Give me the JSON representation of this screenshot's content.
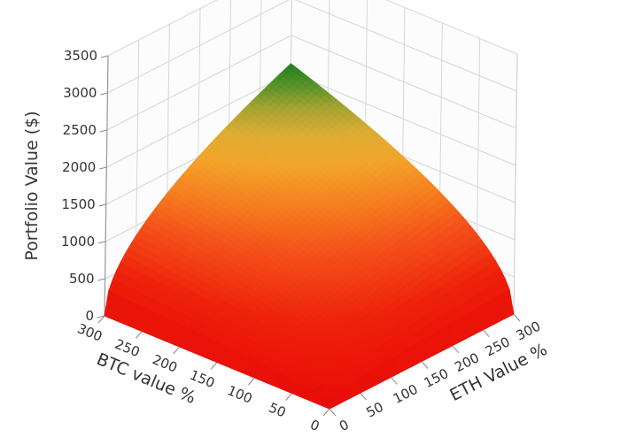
{
  "chart_data": {
    "type": "surface",
    "title": "",
    "xlabel": "BTC value %",
    "ylabel": "ETH Value %",
    "zlabel": "Portfolio Value ($)",
    "xlim": [
      0,
      300
    ],
    "ylim": [
      0,
      300
    ],
    "zlim": [
      0,
      3500
    ],
    "x_ticks": [
      300,
      250,
      200,
      150,
      100,
      50,
      0
    ],
    "y_ticks": [
      0,
      50,
      100,
      150,
      200,
      250,
      300
    ],
    "z_ticks": [
      0,
      500,
      1000,
      1500,
      2000,
      2500,
      3000,
      3500
    ],
    "grid": true,
    "legend": false,
    "background": "#ffffff",
    "wall_color": "#fcfcfd",
    "grid_color": "#d7d7d7",
    "text_color": "#333333",
    "surface": {
      "description": "dome-shaped surface, z ~= zmax * sqrt((btc/300)*(eth/300)); value is 0 along the btc=0 and eth=0 edges and peaks at the back corner (btc=300, eth=300)",
      "zmax": 2120,
      "btc_values": [
        0,
        50,
        100,
        150,
        200,
        250,
        300
      ],
      "eth_values": [
        0,
        50,
        100,
        150,
        200,
        250,
        300
      ],
      "z_grid": [
        [
          0,
          0,
          0,
          0,
          0,
          0,
          0
        ],
        [
          0,
          350,
          500,
          610,
          710,
          790,
          870
        ],
        [
          0,
          500,
          710,
          870,
          1000,
          1120,
          1220
        ],
        [
          0,
          610,
          870,
          1060,
          1220,
          1370,
          1500
        ],
        [
          0,
          710,
          1000,
          1220,
          1410,
          1580,
          1730
        ],
        [
          0,
          790,
          1120,
          1370,
          1580,
          1770,
          1930
        ],
        [
          0,
          870,
          1220,
          1500,
          1730,
          1930,
          2120
        ]
      ],
      "apex": {
        "btc": 300,
        "eth": 300
      }
    },
    "colorscale": [
      [
        0.0,
        "#e80c08"
      ],
      [
        0.25,
        "#ee220b"
      ],
      [
        0.45,
        "#f4511a"
      ],
      [
        0.58,
        "#f67d20"
      ],
      [
        0.7,
        "#f3a42a"
      ],
      [
        0.79,
        "#ddad33"
      ],
      [
        0.87,
        "#a3a332"
      ],
      [
        0.93,
        "#5d9429"
      ],
      [
        1.0,
        "#1e7e1e"
      ]
    ],
    "colorscale_meaning": "low portfolio value = red, mid = orange/amber, high = green"
  }
}
